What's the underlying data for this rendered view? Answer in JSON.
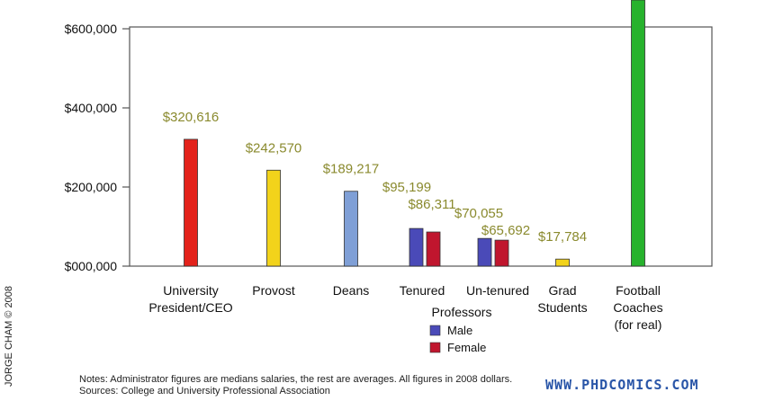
{
  "chart_data": {
    "type": "bar",
    "categories": [
      {
        "lines": [
          "University",
          "President/CEO"
        ]
      },
      {
        "lines": [
          "Provost"
        ]
      },
      {
        "lines": [
          "Deans"
        ]
      },
      {
        "lines": [
          "Tenured",
          "Professors"
        ]
      },
      {
        "lines": [
          "Un-tenured"
        ]
      },
      {
        "lines": [
          "Grad",
          "Students"
        ]
      },
      {
        "lines": [
          "Football",
          "Coaches",
          "(for real)"
        ]
      }
    ],
    "bars": [
      {
        "category": 0,
        "value": 320616,
        "label": "$320,616",
        "color": "#e3221b"
      },
      {
        "category": 1,
        "value": 242570,
        "label": "$242,570",
        "color": "#f2d31b"
      },
      {
        "category": 2,
        "value": 189217,
        "label": "$189,217",
        "color": "#7f9fd6"
      },
      {
        "category": 3,
        "series": "Male",
        "value": 95199,
        "label": "$95,199",
        "color": "#4a4ab8"
      },
      {
        "category": 3,
        "series": "Female",
        "value": 86311,
        "label": "$86,311",
        "color": "#c0162e"
      },
      {
        "category": 4,
        "series": "Male",
        "value": 70055,
        "label": "$70,055",
        "color": "#4a4ab8"
      },
      {
        "category": 4,
        "series": "Female",
        "value": 65692,
        "label": "$65,692",
        "color": "#c0162e"
      },
      {
        "category": 5,
        "value": 17784,
        "label": "$17,784",
        "color": "#f2d31b"
      },
      {
        "category": 6,
        "value": 700000,
        "label": "",
        "color": "#27b22d"
      }
    ],
    "yticks": [
      {
        "value": 0,
        "label": "$000,000"
      },
      {
        "value": 200000,
        "label": "$200,000"
      },
      {
        "value": 400000,
        "label": "$400,000"
      },
      {
        "value": 600000,
        "label": "$600,000"
      }
    ],
    "ylim": [
      0,
      600000
    ],
    "legend": [
      {
        "name": "Male",
        "color": "#4a4ab8"
      },
      {
        "name": "Female",
        "color": "#c0162e"
      }
    ],
    "grid": false
  },
  "footer": {
    "notes": "Notes: Administrator figures are medians salaries, the rest are averages. All figures in 2008 dollars. Sources: College and University Professional Association",
    "site": "WWW.PHDCOMICS.COM",
    "copyright": "JORGE CHAM © 2008"
  }
}
